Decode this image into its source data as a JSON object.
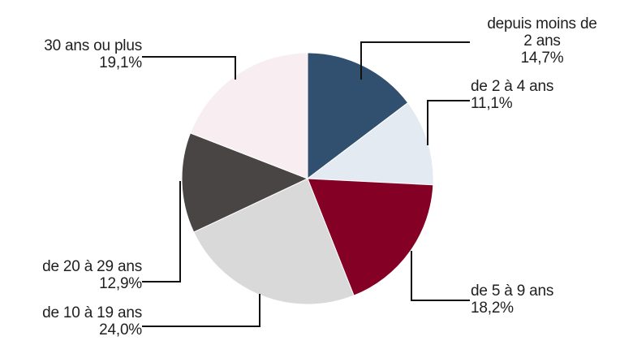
{
  "chart_data": {
    "type": "pie",
    "title": "",
    "legend": "none",
    "start_angle_deg": 0,
    "direction": "clockwise",
    "slices": [
      {
        "label_lines": [
          "depuis moins de",
          "2 ans"
        ],
        "value_text": "14,7%",
        "value": 14.7,
        "color": "#31506f"
      },
      {
        "label_lines": [
          "de 2 à 4 ans"
        ],
        "value_text": "11,1%",
        "value": 11.1,
        "color": "#e3eaf2"
      },
      {
        "label_lines": [
          "de 5 à 9 ans"
        ],
        "value_text": "18,2%",
        "value": 18.2,
        "color": "#840024"
      },
      {
        "label_lines": [
          "de 10 à 19 ans"
        ],
        "value_text": "24,0%",
        "value": 24.0,
        "color": "#d9d9d9"
      },
      {
        "label_lines": [
          "de 20 à 29 ans"
        ],
        "value_text": "12,9%",
        "value": 12.9,
        "color": "#4a4545"
      },
      {
        "label_lines": [
          "30 ans ou plus"
        ],
        "value_text": "19,1%",
        "value": 19.1,
        "color": "#f8eef1"
      }
    ]
  }
}
